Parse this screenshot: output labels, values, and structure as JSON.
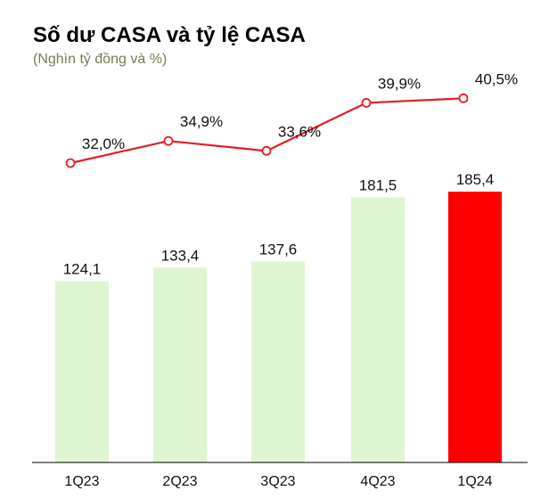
{
  "chart_data": {
    "type": "bar",
    "title": "Số dư CASA và tỷ lệ CASA",
    "subtitle": "(Nghìn tỷ đồng và %)",
    "categories": [
      "1Q23",
      "2Q23",
      "3Q23",
      "4Q23",
      "1Q24"
    ],
    "series": [
      {
        "type": "bar",
        "values": [
          124.1,
          133.4,
          137.6,
          181.5,
          185.4
        ],
        "labels": [
          "124,1",
          "133,4",
          "137,6",
          "181,5",
          "185,4"
        ],
        "colors": [
          "#dff5d1",
          "#dff5d1",
          "#dff5d1",
          "#dff5d1",
          "#ff0000"
        ]
      },
      {
        "type": "line",
        "values": [
          32.0,
          34.9,
          33.6,
          39.9,
          40.5
        ],
        "labels": [
          "32,0%",
          "34,9%",
          "33,6%",
          "39,9%",
          "40,5%"
        ],
        "color": "#e31e24",
        "marker": "open-circle"
      }
    ],
    "grid": false,
    "legend": "none"
  }
}
